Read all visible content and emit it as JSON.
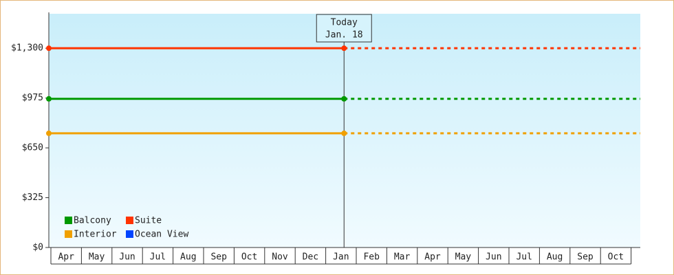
{
  "chart_data": {
    "type": "line",
    "categories": [
      "Apr",
      "May",
      "Jun",
      "Jul",
      "Aug",
      "Sep",
      "Oct",
      "Nov",
      "Dec",
      "Jan",
      "Feb",
      "Mar",
      "Apr",
      "May",
      "Jun",
      "Jul",
      "Aug",
      "Sep",
      "Oct"
    ],
    "series": [
      {
        "name": "Balcony",
        "color": "#009900",
        "values": [
          970,
          970,
          970,
          970,
          970,
          970,
          970,
          970,
          970,
          970,
          null,
          null,
          null,
          null,
          null,
          null,
          null,
          null,
          null
        ]
      },
      {
        "name": "Suite",
        "color": "#ff3300",
        "values": [
          1300,
          1300,
          1300,
          1300,
          1300,
          1300,
          1300,
          1300,
          1300,
          1300,
          null,
          null,
          null,
          null,
          null,
          null,
          null,
          null,
          null
        ]
      },
      {
        "name": "Interior",
        "color": "#f0a000",
        "values": [
          745,
          745,
          745,
          745,
          745,
          745,
          745,
          745,
          745,
          745,
          null,
          null,
          null,
          null,
          null,
          null,
          null,
          null,
          null
        ]
      },
      {
        "name": "Ocean View",
        "color": "#0044ff",
        "values": [
          null,
          null,
          null,
          null,
          null,
          null,
          null,
          null,
          null,
          null,
          null,
          null,
          null,
          null,
          null,
          null,
          null,
          null,
          null
        ]
      }
    ],
    "annotation": [
      "Today",
      "Jan. 18"
    ],
    "ylim": [
      0,
      1525
    ],
    "yticks": [
      {
        "value": 0,
        "label": "$0"
      },
      {
        "value": 325,
        "label": "$325"
      },
      {
        "value": 650,
        "label": "$650"
      },
      {
        "value": 975,
        "label": "$975"
      },
      {
        "value": 1300,
        "label": "$1,300"
      }
    ],
    "legend": "lower-left"
  }
}
